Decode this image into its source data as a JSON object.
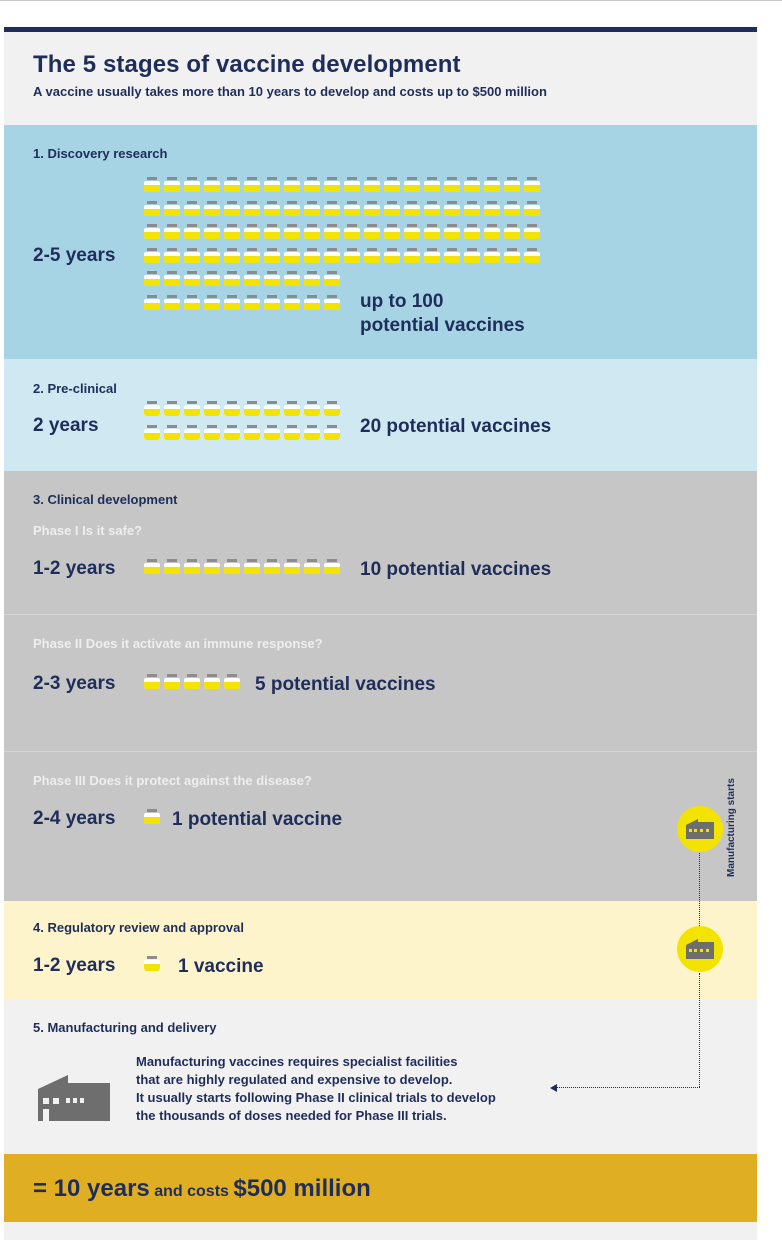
{
  "title": "The 5 stages of vaccine development",
  "subtitle": "A vaccine usually takes more than 10 years to develop and costs up to $500 million",
  "colors": {
    "navy": "#1f2d5a",
    "discovery_bg": "#a6d4e5",
    "preclinical_bg": "#cfe8f1",
    "clinical_bg": "#c6c6c6",
    "regulatory_bg": "#fdf4cc",
    "total_bg": "#e0ae22",
    "vial_liquid": "#f2e400"
  },
  "stages": [
    {
      "label": "1. Discovery research",
      "duration": "2-5 years",
      "count_line1": "up to 100",
      "count_line2": "potential vaccines",
      "vials": 100
    },
    {
      "label": "2. Pre-clinical",
      "duration": "2 years",
      "count": "20 potential vaccines",
      "vials": 20
    },
    {
      "label": "3. Clinical development",
      "phases": [
        {
          "label": "Phase I Is it safe?",
          "duration": "1-2 years",
          "count": "10 potential vaccines",
          "vials": 10
        },
        {
          "label": "Phase II Does it activate an immune response?",
          "duration": "2-3 years",
          "count": "5 potential vaccines",
          "vials": 5
        },
        {
          "label": "Phase III Does it protect against the disease?",
          "duration": "2-4 years",
          "count": "1 potential vaccine",
          "vials": 1
        }
      ]
    },
    {
      "label": "4. Regulatory review and approval",
      "duration": "1-2 years",
      "count": "1 vaccine",
      "vials": 1
    },
    {
      "label": "5. Manufacturing and delivery",
      "text_lines": [
        "Manufacturing vaccines requires specialist facilities",
        "that are highly regulated and expensive to develop.",
        "It usually starts following Phase II clinical trials to develop",
        "the thousands of doses needed for Phase III trials."
      ]
    }
  ],
  "manufacturing_note": "Manufacturing starts",
  "icons": {
    "vial": "vial-icon",
    "factory": "factory-icon"
  },
  "total": {
    "years": "= 10 years",
    "mid": "and costs",
    "cost": "$500 million"
  }
}
